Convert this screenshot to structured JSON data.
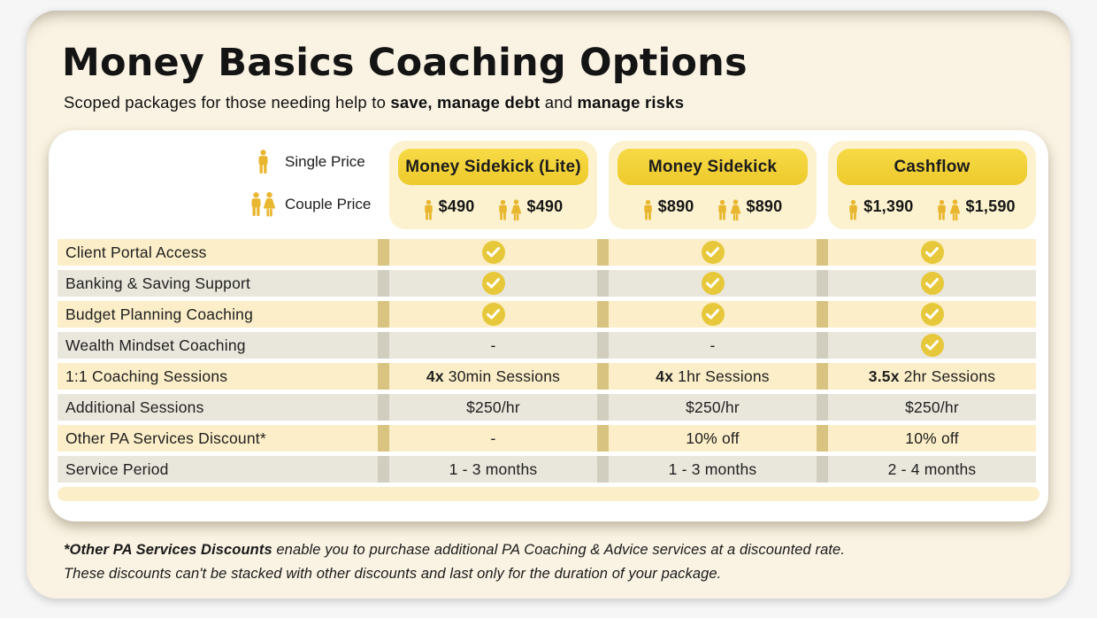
{
  "page": {
    "title": "Money Basics Coaching Options",
    "subtitle": {
      "prefix": "Scoped packages for those needing help to ",
      "bold1": "save, manage debt",
      "mid": " and ",
      "bold2": "manage risks"
    }
  },
  "legend": {
    "single_label": "Single Price",
    "couple_label": "Couple Price"
  },
  "packages": [
    {
      "name": "Money Sidekick (Lite)",
      "single_price": "$490",
      "couple_price": "$490"
    },
    {
      "name": "Money Sidekick",
      "single_price": "$890",
      "couple_price": "$890"
    },
    {
      "name": "Cashflow",
      "single_price": "$1,390",
      "couple_price": "$1,590"
    }
  ],
  "rows": [
    {
      "label": "Client Portal Access",
      "cells": [
        {
          "type": "check"
        },
        {
          "type": "check"
        },
        {
          "type": "check"
        }
      ]
    },
    {
      "label": "Banking & Saving Support",
      "cells": [
        {
          "type": "check"
        },
        {
          "type": "check"
        },
        {
          "type": "check"
        }
      ]
    },
    {
      "label": "Budget Planning Coaching",
      "cells": [
        {
          "type": "check"
        },
        {
          "type": "check"
        },
        {
          "type": "check"
        }
      ]
    },
    {
      "label": "Wealth Mindset Coaching",
      "cells": [
        {
          "type": "text",
          "text": "-"
        },
        {
          "type": "text",
          "text": "-"
        },
        {
          "type": "check"
        }
      ]
    },
    {
      "label": "1:1 Coaching Sessions",
      "cells": [
        {
          "type": "text",
          "bold": "4x",
          "text": "30min Sessions"
        },
        {
          "type": "text",
          "bold": "4x",
          "text": "1hr Sessions"
        },
        {
          "type": "text",
          "bold": "3.5x",
          "text": "2hr Sessions"
        }
      ]
    },
    {
      "label": "Additional Sessions",
      "cells": [
        {
          "type": "text",
          "text": "$250/hr"
        },
        {
          "type": "text",
          "text": "$250/hr"
        },
        {
          "type": "text",
          "text": "$250/hr"
        }
      ]
    },
    {
      "label": "Other PA Services Discount*",
      "cells": [
        {
          "type": "text",
          "text": "-"
        },
        {
          "type": "text",
          "text": "10% off"
        },
        {
          "type": "text",
          "text": "10% off"
        }
      ]
    },
    {
      "label": "Service Period",
      "cells": [
        {
          "type": "text",
          "text": "1 - 3 months"
        },
        {
          "type": "text",
          "text": "1 - 3 months"
        },
        {
          "type": "text",
          "text": "2 - 4 months"
        }
      ]
    }
  ],
  "footer": {
    "bold": "*Other PA Services Discounts",
    "line1_rest": " enable you to purchase additional PA Coaching & Advice services at a discounted rate.",
    "line2": "These discounts can't be stacked with other discounts and last only for the duration of your package."
  },
  "icons": {
    "single_person": "gold standing man glyph",
    "couple": "gold man and woman glyphs",
    "check": "white checkmark in gold circle"
  },
  "colors": {
    "page-bg": "#f6f6f7",
    "cream": "#faf3e3",
    "pkg-card-bg": "#fcf2cf",
    "pill-top": "#f6da46",
    "pill-bottom": "#eeca2c",
    "row-yellow": "#fbeec8",
    "strip-yellow": "#d8c480",
    "row-gray": "#e9e6db",
    "strip-gray": "#d2cebf",
    "check-gold": "#e7c83a",
    "gold-icon": "#e9b62f"
  }
}
